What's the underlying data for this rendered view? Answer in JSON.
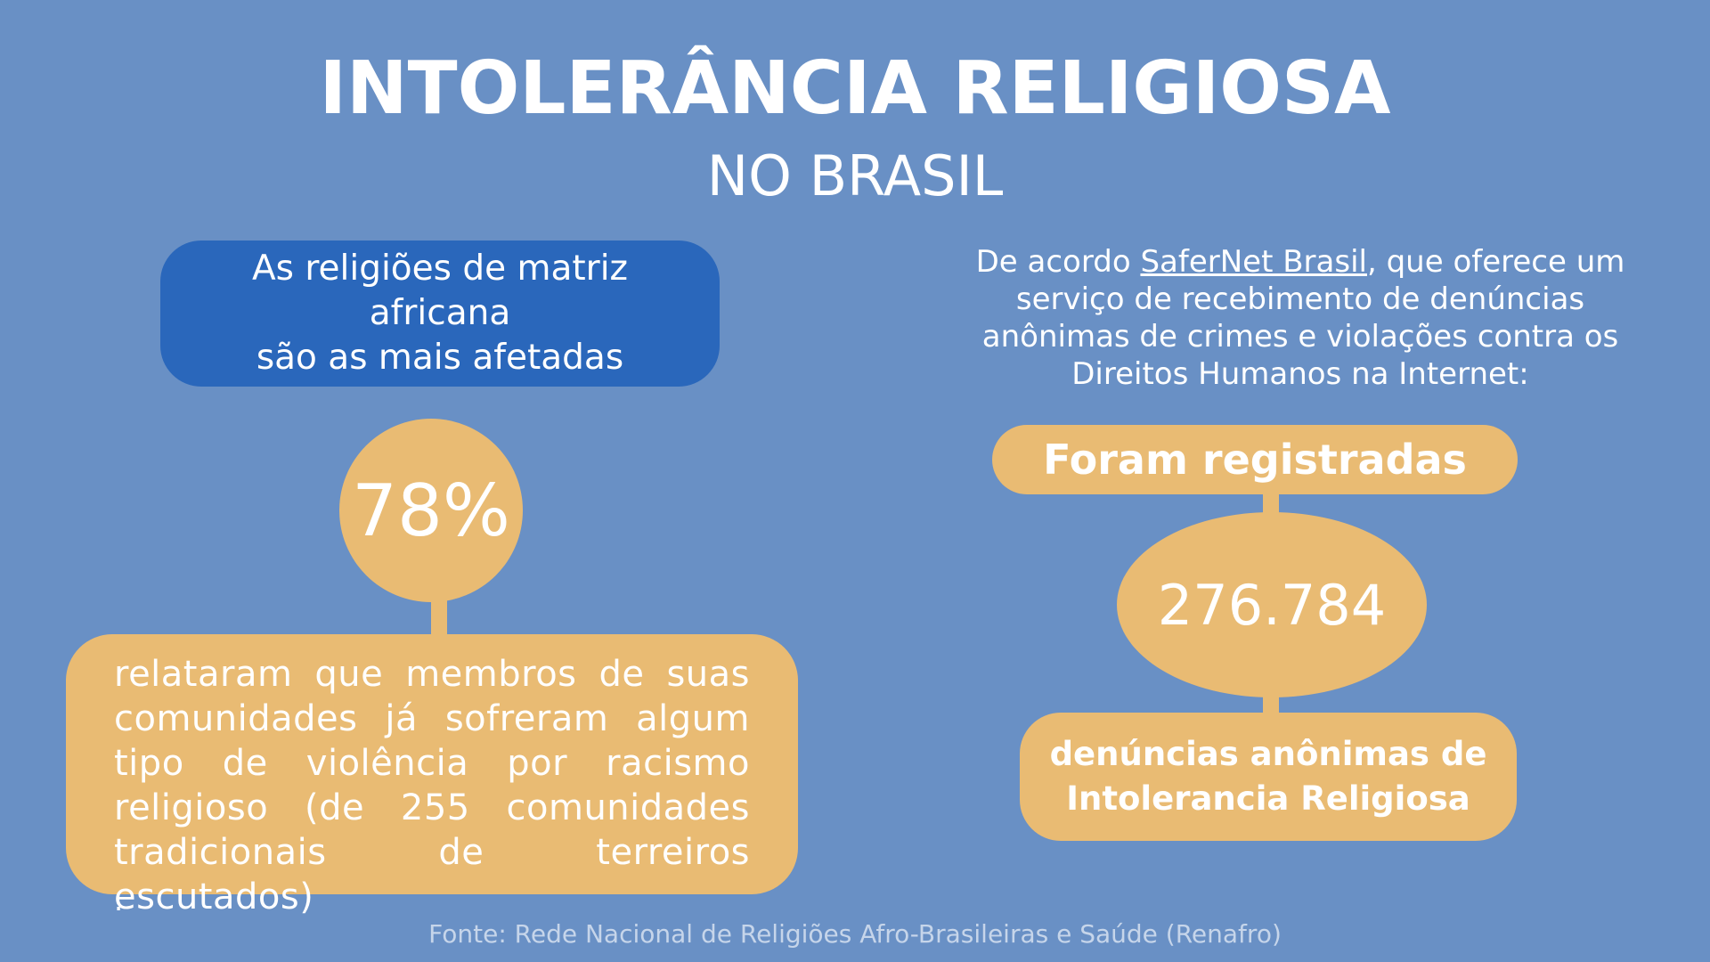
{
  "header": {
    "title": "INTOLERÂNCIA RELIGIOSA",
    "subtitle": "NO BRASIL"
  },
  "left": {
    "highlight_line1": "As religiões de matriz africana",
    "highlight_line2": "são as mais afetadas",
    "percent": "78%",
    "description": "relataram que membros de suas comunidades já sofreram algum tipo de violência por racismo religioso (de 255 comunidades tradicionais de terreiros escutados)",
    "trailing_dot": "."
  },
  "right": {
    "intro_before_link": "De acordo ",
    "intro_link": "SaferNet Brasil",
    "intro_after_link": ", que oferece um serviço de recebimento de denúncias anônimas de crimes e violações contra os Direitos Humanos na Internet:",
    "pill_label": "Foram registradas",
    "count": "276.784",
    "footer_line1": "denúncias anônimas de",
    "footer_line2": "Intolerancia Religiosa"
  },
  "source": "Fonte: Rede Nacional de Religiões Afro-Brasileiras e Saúde (Renafro)",
  "colors": {
    "background": "#6990c5",
    "dark_blue": "#2a67bb",
    "tan": "#e9bb73",
    "text": "#ffffff"
  }
}
